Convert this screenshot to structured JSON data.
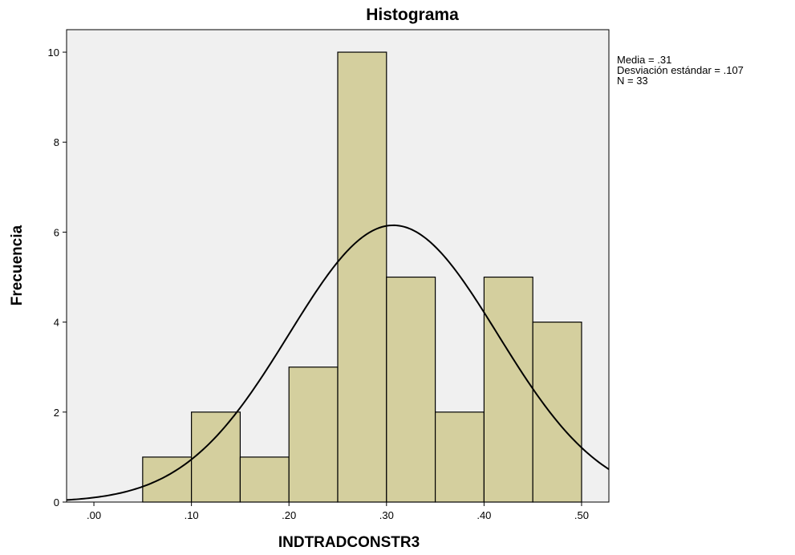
{
  "chart_data": {
    "type": "bar",
    "subtype": "histogram",
    "title": "Histograma",
    "xlabel": "INDTRADCONSTR3",
    "ylabel": "Frecuencia",
    "bins": [
      {
        "start": 0.05,
        "end": 0.1,
        "count": 1
      },
      {
        "start": 0.1,
        "end": 0.15,
        "count": 2
      },
      {
        "start": 0.15,
        "end": 0.2,
        "count": 1
      },
      {
        "start": 0.2,
        "end": 0.25,
        "count": 3
      },
      {
        "start": 0.25,
        "end": 0.3,
        "count": 10
      },
      {
        "start": 0.3,
        "end": 0.35,
        "count": 5
      },
      {
        "start": 0.35,
        "end": 0.4,
        "count": 2
      },
      {
        "start": 0.4,
        "end": 0.45,
        "count": 5
      },
      {
        "start": 0.45,
        "end": 0.5,
        "count": 4
      }
    ],
    "xlim": [
      -0.028,
      0.528
    ],
    "ylim": [
      0,
      10.5
    ],
    "x_ticks": [
      0.0,
      0.1,
      0.2,
      0.3,
      0.4,
      0.5
    ],
    "x_tick_labels": [
      ".00",
      ".10",
      ".20",
      ".30",
      ".40",
      ".50"
    ],
    "y_ticks": [
      0,
      2,
      4,
      6,
      8,
      10
    ],
    "y_tick_labels": [
      "0",
      "2",
      "4",
      "6",
      "8",
      "10"
    ],
    "normal_curve": {
      "mean": 0.307,
      "std": 0.107,
      "n": 33,
      "bin_width": 0.05
    },
    "stats": {
      "media": "Media = .31",
      "desviacion": "Desviación estándar = .107",
      "n": "N = 33"
    },
    "colors": {
      "bar_fill": "#d4cf9e",
      "bar_stroke": "#000000",
      "plot_background": "#f0f0f0",
      "curve": "#000000"
    },
    "grid": false,
    "legend": "none"
  }
}
